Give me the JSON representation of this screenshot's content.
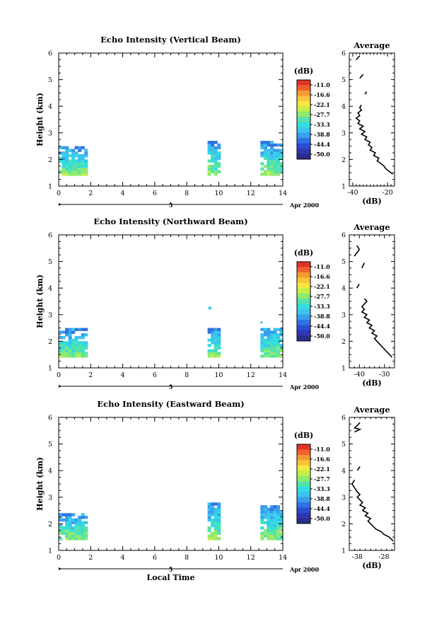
{
  "chart_data": [
    {
      "type": "heatmap",
      "title": "Echo Intensity (Vertical Beam)",
      "ylabel": "Height (km)",
      "xlabel": "",
      "xlim": [
        0,
        14
      ],
      "ylim": [
        1,
        6
      ],
      "x_ticks": [
        "0",
        "2",
        "4",
        "6",
        "8",
        "10",
        "12",
        "14"
      ],
      "y_ticks": [
        "1",
        "2",
        "3",
        "4",
        "5",
        "6"
      ],
      "date_axis": {
        "label": "5",
        "date": "Apr 2000"
      },
      "colorbar": {
        "unit": "(dB)",
        "labels": [
          "-11.0",
          "-16.6",
          "-22.1",
          "-27.7",
          "-33.3",
          "-38.8",
          "-44.4",
          "-50.0"
        ]
      },
      "echo_regions": [
        {
          "t_start": 0.0,
          "t_end": 1.7,
          "h_bottom": 1.4,
          "h_top": 2.45
        },
        {
          "t_start": 9.3,
          "t_end": 10.0,
          "h_bottom": 1.4,
          "h_top": 2.7
        },
        {
          "t_start": 12.6,
          "t_end": 14.0,
          "h_bottom": 1.4,
          "h_top": 2.65
        }
      ],
      "profile": {
        "title": "Average",
        "xlabel": "(dB)",
        "x_ticks": [
          "-40",
          "-20"
        ],
        "xlim": [
          -42,
          -16
        ],
        "ylim": [
          1,
          6
        ],
        "y_ticks": [
          "1",
          "2",
          "3",
          "4",
          "5",
          "6"
        ],
        "points": [
          [
            -17,
            1.45
          ],
          [
            -19,
            1.55
          ],
          [
            -21,
            1.65
          ],
          [
            -22,
            1.75
          ],
          [
            -24,
            1.85
          ],
          [
            -26,
            1.95
          ],
          [
            -25,
            2.05
          ],
          [
            -28,
            2.15
          ],
          [
            -27,
            2.25
          ],
          [
            -30,
            2.35
          ],
          [
            -29,
            2.45
          ],
          [
            -31,
            2.55
          ],
          [
            -30,
            2.65
          ],
          [
            -33,
            2.75
          ],
          [
            -32,
            2.85
          ],
          [
            -35,
            2.95
          ],
          [
            -33,
            3.05
          ],
          [
            -36,
            3.15
          ],
          [
            -34,
            3.25
          ],
          [
            -37,
            3.35
          ],
          [
            -36,
            3.45
          ],
          [
            -38,
            3.55
          ],
          [
            -36,
            3.65
          ],
          [
            -37,
            3.75
          ],
          [
            -35,
            3.85
          ],
          [
            -36,
            3.95
          ],
          [
            -35,
            4.05
          ]
        ],
        "fragments": [
          [
            [
              -33,
              4.45
            ],
            [
              -32,
              4.55
            ]
          ],
          [
            [
              -36,
              5.05
            ],
            [
              -34,
              5.2
            ]
          ],
          [
            [
              -38,
              5.75
            ],
            [
              -36,
              5.9
            ]
          ]
        ]
      }
    },
    {
      "type": "heatmap",
      "title": "Echo Intensity (Northward Beam)",
      "ylabel": "Height (km)",
      "xlabel": "",
      "xlim": [
        0,
        14
      ],
      "ylim": [
        1,
        6
      ],
      "x_ticks": [
        "0",
        "2",
        "4",
        "6",
        "8",
        "10",
        "12",
        "14"
      ],
      "y_ticks": [
        "1",
        "2",
        "3",
        "4",
        "5",
        "6"
      ],
      "date_axis": {
        "label": "5",
        "date": "Apr 2000"
      },
      "colorbar": {
        "unit": "(dB)",
        "labels": [
          "-11.0",
          "-16.6",
          "-22.1",
          "-27.7",
          "-33.3",
          "-38.8",
          "-44.4",
          "-50.0"
        ]
      },
      "echo_regions": [
        {
          "t_start": 0.0,
          "t_end": 1.7,
          "h_bottom": 1.4,
          "h_top": 2.45
        },
        {
          "t_start": 9.3,
          "t_end": 10.0,
          "h_bottom": 1.4,
          "h_top": 2.5
        },
        {
          "t_start": 12.6,
          "t_end": 14.0,
          "h_bottom": 1.4,
          "h_top": 2.5
        }
      ],
      "profile": {
        "title": "Average",
        "xlabel": "(dB)",
        "x_ticks": [
          "-40",
          "-30"
        ],
        "xlim": [
          -44,
          -26
        ],
        "ylim": [
          1,
          6
        ],
        "y_ticks": [
          "1",
          "2",
          "3",
          "4",
          "5",
          "6"
        ],
        "points": [
          [
            -27,
            1.4
          ],
          [
            -28,
            1.5
          ],
          [
            -29,
            1.6
          ],
          [
            -30,
            1.7
          ],
          [
            -31,
            1.8
          ],
          [
            -32,
            1.9
          ],
          [
            -33,
            2.0
          ],
          [
            -34,
            2.1
          ],
          [
            -33,
            2.2
          ],
          [
            -35,
            2.3
          ],
          [
            -34,
            2.4
          ],
          [
            -36,
            2.5
          ],
          [
            -35,
            2.6
          ],
          [
            -37,
            2.7
          ],
          [
            -36,
            2.8
          ],
          [
            -38,
            2.9
          ],
          [
            -37,
            3.0
          ],
          [
            -39,
            3.1
          ],
          [
            -38,
            3.2
          ],
          [
            -39,
            3.3
          ],
          [
            -38,
            3.4
          ],
          [
            -37,
            3.5
          ],
          [
            -38,
            3.6
          ]
        ],
        "fragments": [
          [
            [
              -41,
              4.0
            ],
            [
              -40,
              4.15
            ]
          ],
          [
            [
              -39,
              4.75
            ],
            [
              -38,
              4.95
            ]
          ],
          [
            [
              -42,
              5.2
            ],
            [
              -40,
              5.45
            ],
            [
              -41,
              5.6
            ]
          ]
        ]
      }
    },
    {
      "type": "heatmap",
      "title": "Echo Intensity (Eastward Beam)",
      "ylabel": "Height (km)",
      "xlabel": "Local Time",
      "xlim": [
        0,
        14
      ],
      "ylim": [
        1,
        6
      ],
      "x_ticks": [
        "0",
        "2",
        "4",
        "6",
        "8",
        "10",
        "12",
        "14"
      ],
      "y_ticks": [
        "1",
        "2",
        "3",
        "4",
        "5",
        "6"
      ],
      "date_axis": {
        "label": "5",
        "date": "Apr 2000"
      },
      "colorbar": {
        "unit": "(dB)",
        "labels": [
          "-11.0",
          "-16.6",
          "-22.1",
          "-27.7",
          "-33.3",
          "-38.8",
          "-44.4",
          "-50.0"
        ]
      },
      "echo_regions": [
        {
          "t_start": 0.0,
          "t_end": 1.7,
          "h_bottom": 1.4,
          "h_top": 2.4
        },
        {
          "t_start": 9.3,
          "t_end": 10.0,
          "h_bottom": 1.4,
          "h_top": 2.75
        },
        {
          "t_start": 12.6,
          "t_end": 14.0,
          "h_bottom": 1.4,
          "h_top": 2.65
        }
      ],
      "profile": {
        "title": "Average",
        "xlabel": "(dB)",
        "x_ticks": [
          "-38",
          "-28"
        ],
        "xlim": [
          -41,
          -24
        ],
        "ylim": [
          1,
          6
        ],
        "y_ticks": [
          "1",
          "2",
          "3",
          "4",
          "5",
          "6"
        ],
        "points": [
          [
            -24.5,
            1.35
          ],
          [
            -26,
            1.5
          ],
          [
            -28,
            1.6
          ],
          [
            -29,
            1.7
          ],
          [
            -31,
            1.8
          ],
          [
            -32,
            1.9
          ],
          [
            -33,
            2.0
          ],
          [
            -34,
            2.1
          ],
          [
            -33,
            2.2
          ],
          [
            -35,
            2.3
          ],
          [
            -34,
            2.4
          ],
          [
            -36,
            2.5
          ],
          [
            -35,
            2.6
          ],
          [
            -37,
            2.7
          ],
          [
            -36,
            2.8
          ],
          [
            -37,
            2.9
          ],
          [
            -38,
            3.0
          ],
          [
            -37,
            3.1
          ],
          [
            -38,
            3.2
          ],
          [
            -39,
            3.35
          ],
          [
            -40,
            3.5
          ],
          [
            -39,
            3.65
          ]
        ],
        "fragments": [
          [
            [
              -38,
              4.0
            ],
            [
              -37,
              4.15
            ]
          ],
          [
            [
              -39,
              5.45
            ],
            [
              -37,
              5.55
            ],
            [
              -39,
              5.6
            ],
            [
              -38,
              5.7
            ],
            [
              -37,
              5.8
            ]
          ]
        ]
      }
    }
  ]
}
